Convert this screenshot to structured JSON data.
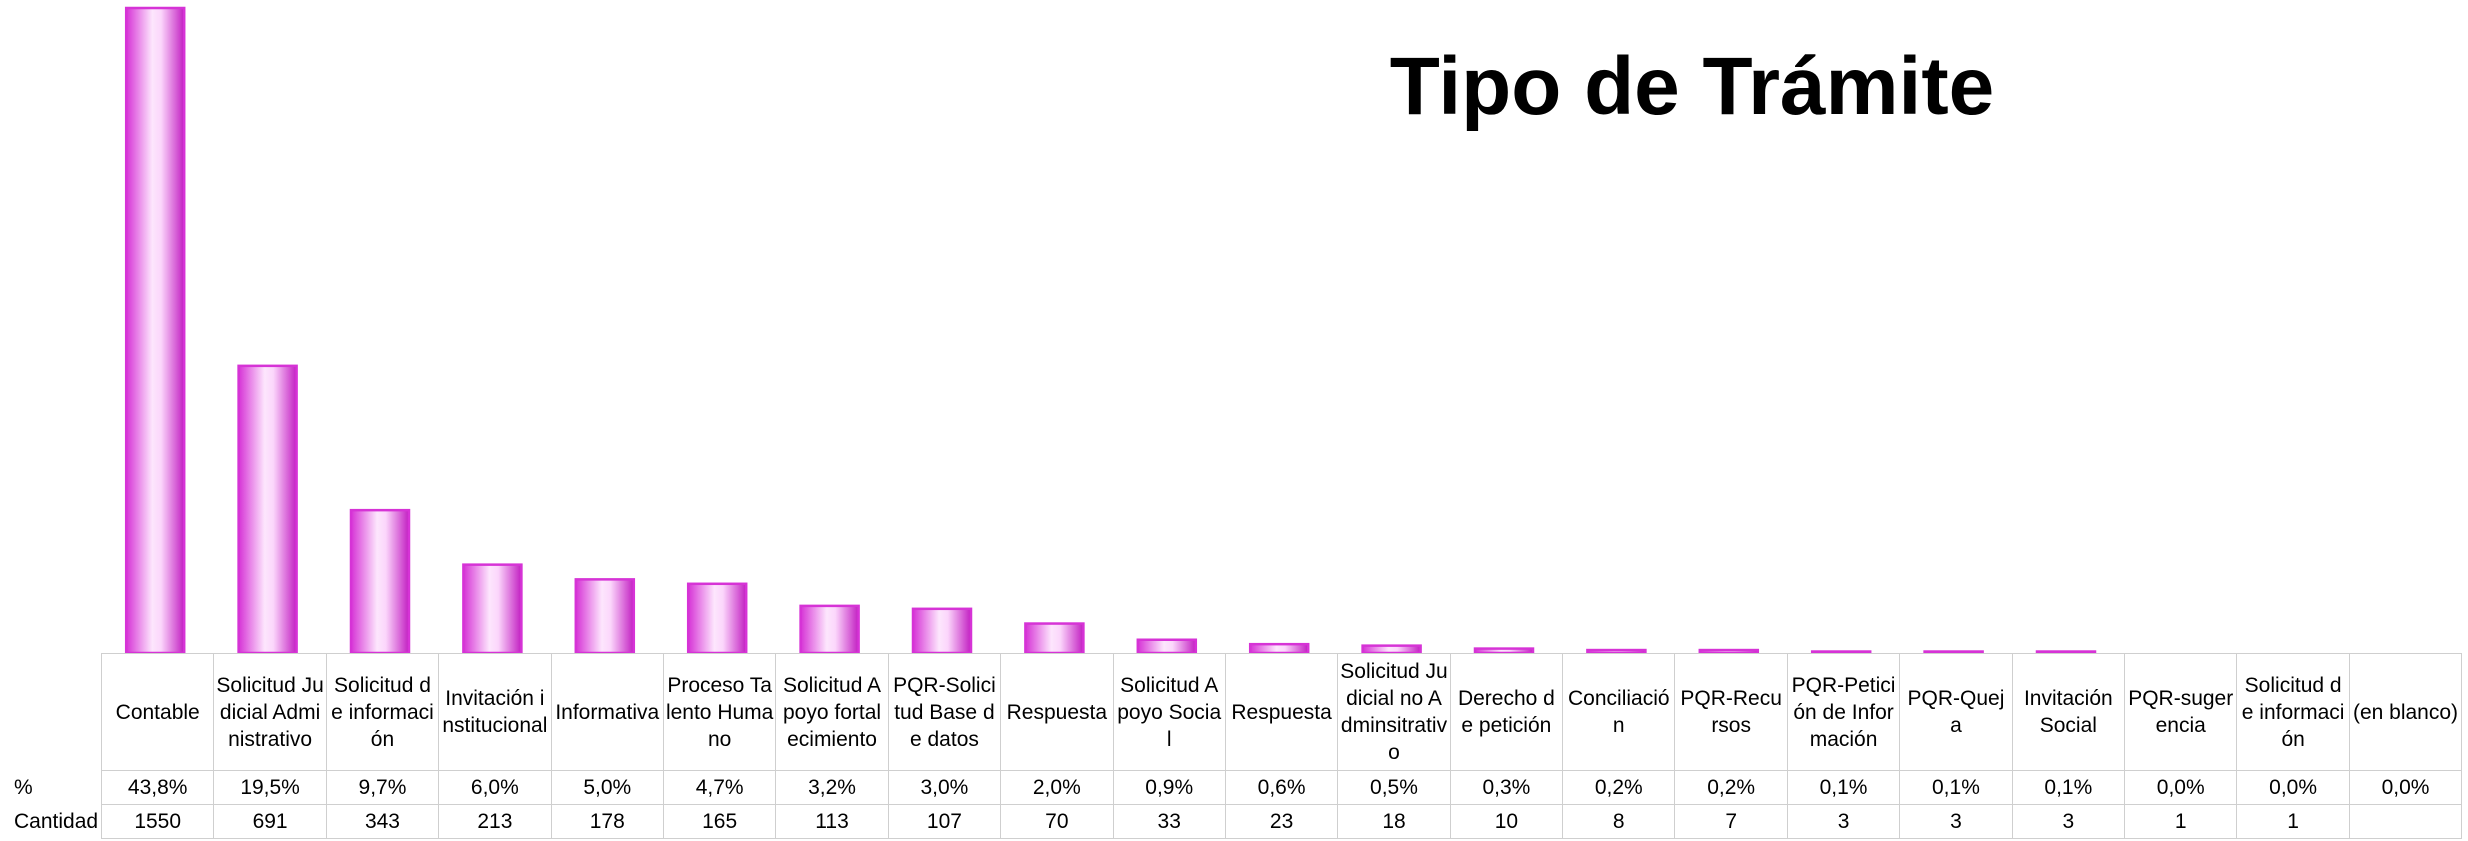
{
  "chart_data": {
    "type": "bar",
    "title": "Tipo de Trámite",
    "categories": [
      "Contable",
      "Solicitud Judicial Administrativo",
      "Solicitud de información",
      "Invitación institucional",
      "Informativa",
      "Proceso Talento Humano",
      "Solicitud Apoyo fortalecimiento",
      "PQR-Solicitud Base de datos",
      "Respuesta",
      "Solicitud Apoyo Social",
      "Respuesta",
      "Solicitud Judicial no Adminsitrativo",
      "Derecho de petición",
      "Conciliación",
      "PQR-Recursos",
      "PQR-Petición de Información",
      "PQR-Queja",
      "Invitación Social",
      "PQR-sugerencia",
      "Solicitud de información",
      "(en blanco)"
    ],
    "values": [
      43.8,
      19.5,
      9.7,
      6.0,
      5.0,
      4.7,
      3.2,
      3.0,
      2.0,
      0.9,
      0.6,
      0.5,
      0.3,
      0.2,
      0.2,
      0.1,
      0.1,
      0.1,
      0.0,
      0.0,
      0.0
    ],
    "value_labels": [
      "43,8%",
      "19,5%",
      "9,7%",
      "6,0%",
      "5,0%",
      "4,7%",
      "3,2%",
      "3,0%",
      "2,0%",
      "0,9%",
      "0,6%",
      "0,5%",
      "0,3%",
      "0,2%",
      "0,2%",
      "0,1%",
      "0,1%",
      "0,1%",
      "0,0%",
      "0,0%",
      "0,0%"
    ],
    "counts": [
      1550,
      691,
      343,
      213,
      178,
      165,
      113,
      107,
      70,
      33,
      23,
      18,
      10,
      8,
      7,
      3,
      3,
      3,
      1,
      1,
      null
    ],
    "row_labels": [
      "%",
      "Cantidad"
    ],
    "color": "#d633d6"
  }
}
